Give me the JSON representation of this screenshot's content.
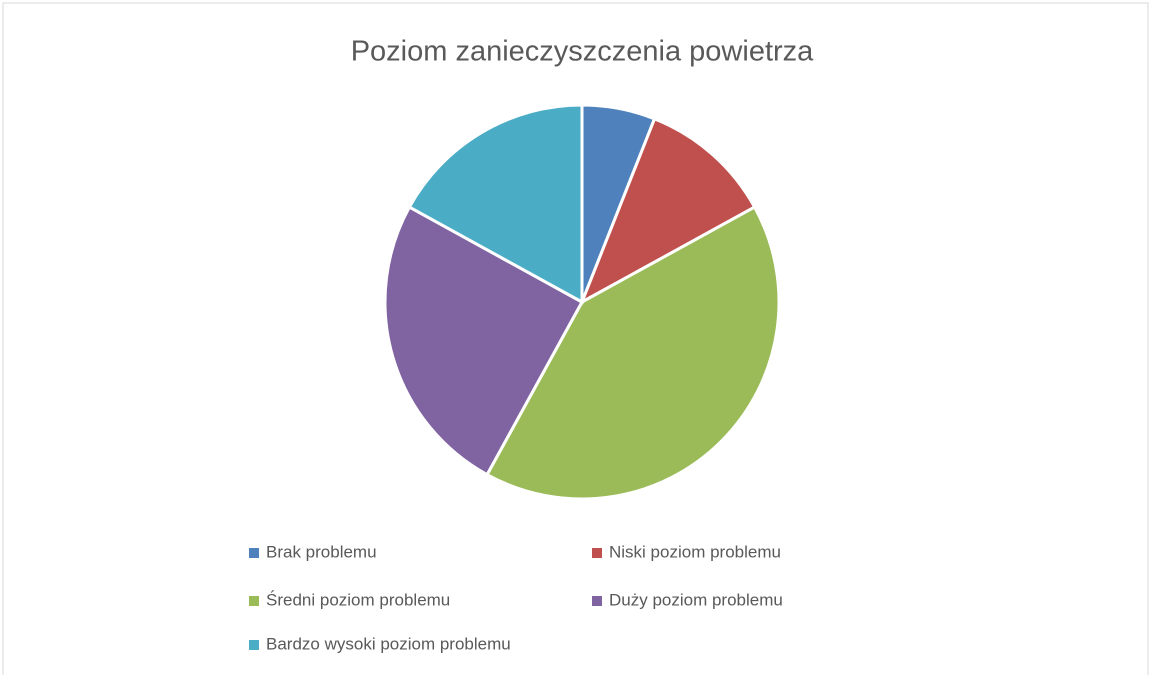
{
  "chart_data": {
    "type": "pie",
    "title": "Poziom zanieczyszczenia powietrza",
    "categories": [
      "Brak problemu",
      "Niski poziom problemu",
      "Średni poziom problemu",
      "Duży poziom problemu",
      "Bardzo wysoki poziom problemu"
    ],
    "values": [
      6,
      11,
      41,
      25,
      17
    ],
    "colors": [
      "#4f81bd",
      "#c0504d",
      "#9bbb59",
      "#8064a2",
      "#4bacc6"
    ],
    "legend": "bottom"
  }
}
